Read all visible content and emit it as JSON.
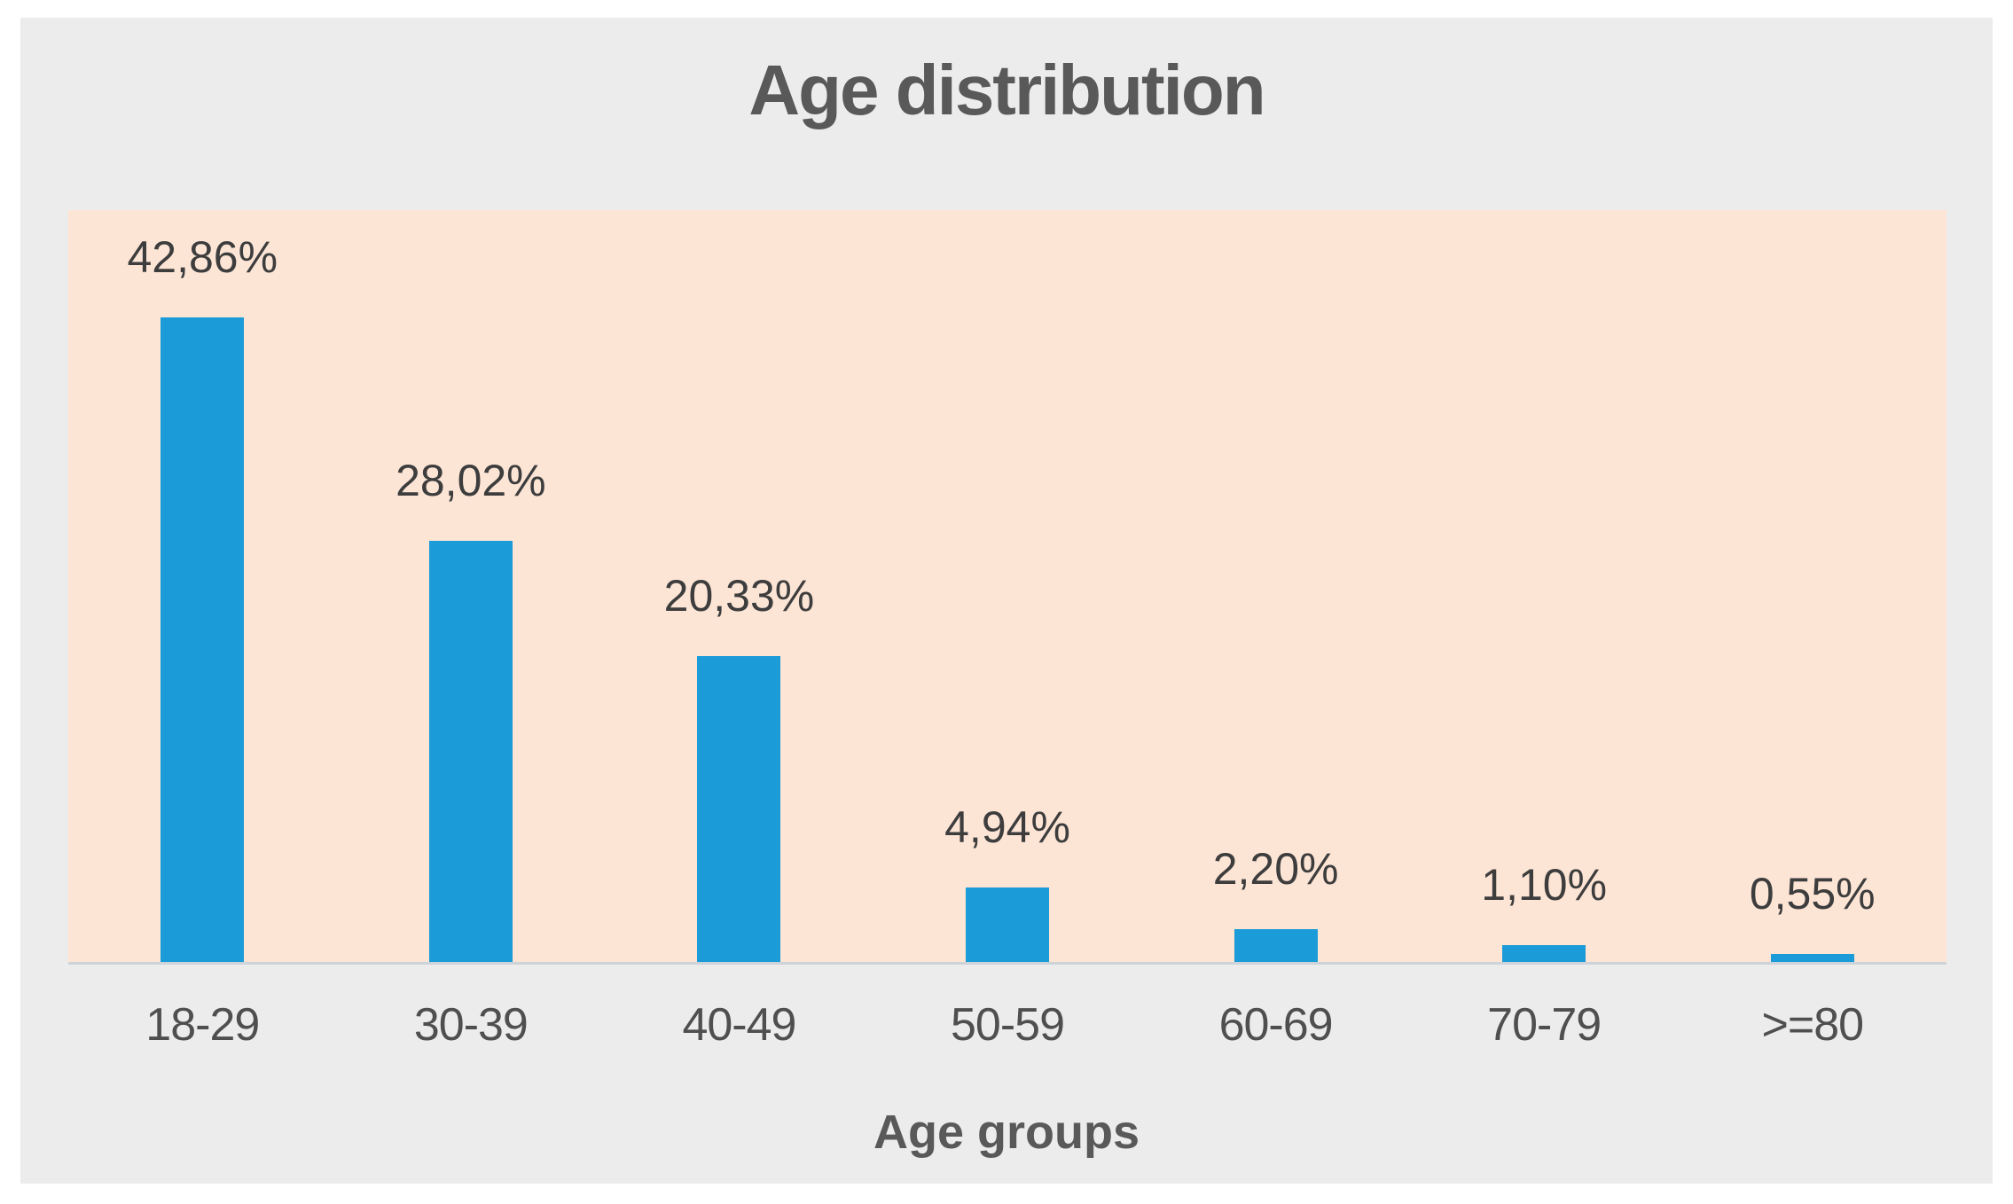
{
  "chart": {
    "colors": {
      "page_bg": "#ffffff",
      "chart_bg": "#ececec",
      "plot_bg": "#fde5d6",
      "bar": "#1b9bd8",
      "title_text": "#595959",
      "value_label_text": "#3d3d3d",
      "tick_text": "#4f4f4f",
      "axis_line": "#ccd3d9"
    }
  },
  "chart_data": {
    "type": "bar",
    "title": "Age distribution",
    "xlabel": "Age groups",
    "ylabel": "",
    "categories": [
      "18-29",
      "30-39",
      "40-49",
      "50-59",
      "60-69",
      "70-79",
      ">=80"
    ],
    "values": [
      42.86,
      28.02,
      20.33,
      4.94,
      2.2,
      1.1,
      0.55
    ],
    "value_labels": [
      "42,86%",
      "28,02%",
      "20,33%",
      "4,94%",
      "2,20%",
      "1,10%",
      "0,55%"
    ],
    "ylim": [
      0,
      50
    ],
    "grid": false,
    "legend": "none",
    "label_position": "above-bar"
  }
}
